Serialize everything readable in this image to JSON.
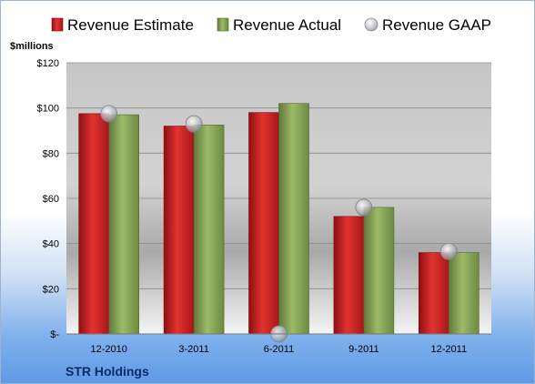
{
  "chart_data": {
    "type": "bar",
    "unit_label": "$millions",
    "company": "STR Holdings",
    "categories": [
      "12-2010",
      "3-2011",
      "6-2011",
      "9-2011",
      "12-2011"
    ],
    "series": [
      {
        "name": "Revenue Estimate",
        "kind": "bar",
        "color": "#cc1f24",
        "values": [
          97.5,
          92,
          98,
          52,
          36
        ]
      },
      {
        "name": "Revenue Actual",
        "kind": "bar",
        "color": "#8aa858",
        "values": [
          97,
          92.5,
          102,
          56,
          36
        ]
      },
      {
        "name": "Revenue GAAP",
        "kind": "marker",
        "color": "#b8bcc4",
        "values": [
          97.5,
          93,
          0,
          56,
          36.5
        ]
      }
    ],
    "ylim": [
      0,
      120
    ],
    "yticks": [
      {
        "value": 0,
        "label": "$-"
      },
      {
        "value": 20,
        "label": "$20"
      },
      {
        "value": 40,
        "label": "$40"
      },
      {
        "value": 60,
        "label": "$60"
      },
      {
        "value": 80,
        "label": "$80"
      },
      {
        "value": 100,
        "label": "$100"
      },
      {
        "value": 120,
        "label": "$120"
      }
    ],
    "grid": true,
    "legend_position": "top"
  }
}
